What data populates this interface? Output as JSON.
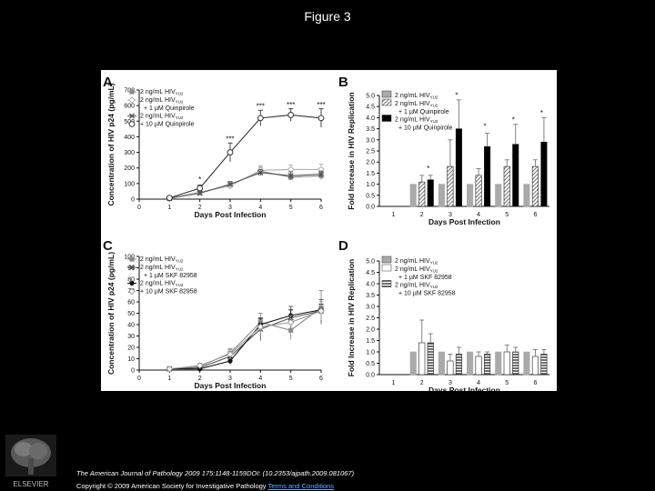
{
  "slide": {
    "title": "Figure 3",
    "citation": "The American Journal of Pathology 2009 175:1148-1159DOI: (10.2353/ajpath.2009.081067)",
    "copyright": "Copyright © 2009 American Society for Investigative Pathology",
    "terms_link": "Terms and Conditions",
    "publisher_logo": "ELSEVIER"
  },
  "chart_data": [
    {
      "panel": "A",
      "type": "line",
      "xlabel": "Days Post Infection",
      "ylabel": "Concentration of HIV p24 (pg/mL)",
      "xlim": [
        0,
        6
      ],
      "ylim": [
        0,
        700
      ],
      "xticks": [
        0,
        1,
        2,
        3,
        4,
        5,
        6
      ],
      "yticks": [
        0,
        100,
        200,
        300,
        400,
        500,
        600,
        700
      ],
      "x": [
        1,
        2,
        3,
        4,
        5,
        6
      ],
      "series": [
        {
          "legend": [
            "2 ng/mL HIV",
            "YU2"
          ],
          "marker": "square",
          "color": "#8a8a8a",
          "values": [
            5,
            40,
            90,
            180,
            140,
            150
          ],
          "errors": [
            3,
            10,
            15,
            25,
            20,
            25
          ]
        },
        {
          "legend": [
            "2 ng/mL HIV",
            "YU2",
            "+ 1 µM Quinpirole"
          ],
          "marker": "diamond",
          "color": "#b0b0b0",
          "values": [
            6,
            45,
            85,
            185,
            190,
            190
          ],
          "errors": [
            3,
            12,
            20,
            30,
            30,
            35
          ]
        },
        {
          "legend": [
            "2 ng/mL HIV",
            "YU2"
          ],
          "marker": "cross",
          "color": "#555555",
          "values": [
            5,
            38,
            95,
            170,
            150,
            160
          ],
          "errors": [
            3,
            10,
            18,
            20,
            25,
            20
          ]
        },
        {
          "legend": [
            "+ 10 µM Quinpirole"
          ],
          "marker": "circle-open",
          "color": "#333333",
          "values": [
            8,
            70,
            300,
            520,
            540,
            520
          ],
          "errors": [
            4,
            20,
            60,
            50,
            40,
            60
          ]
        }
      ],
      "annotations": [
        {
          "x": 2,
          "y": 110,
          "text": "*"
        },
        {
          "x": 3,
          "y": 370,
          "text": "***"
        },
        {
          "x": 4,
          "y": 580,
          "text": "***"
        },
        {
          "x": 5,
          "y": 590,
          "text": "***"
        },
        {
          "x": 6,
          "y": 590,
          "text": "***"
        }
      ]
    },
    {
      "panel": "B",
      "type": "bar",
      "xlabel": "Days Post Infection",
      "ylabel": "Fold Increase in HIV Replication",
      "ylim": [
        0,
        5
      ],
      "yticks": [
        "0.0",
        "0.5",
        "1.0",
        "1.5",
        "2.0",
        "2.5",
        "3.0",
        "3.5",
        "4.0",
        "4.5",
        "5.0"
      ],
      "categories": [
        "1",
        "2",
        "3",
        "4",
        "5",
        "6"
      ],
      "series": [
        {
          "legend": [
            "2 ng/mL HIV",
            "YU2"
          ],
          "fill": "grey",
          "values": [
            null,
            1.0,
            1.0,
            1.0,
            1.0,
            1.0
          ],
          "errors": [
            null,
            0,
            0,
            0,
            0,
            0
          ]
        },
        {
          "legend": [
            "2 ng/mL HIV",
            "YU2",
            "+ 1 µM Quinpirole"
          ],
          "fill": "hatch",
          "values": [
            null,
            1.1,
            1.8,
            1.4,
            1.8,
            1.8
          ],
          "errors": [
            null,
            0.3,
            1.2,
            0.3,
            0.3,
            0.3
          ]
        },
        {
          "legend": [
            "2 ng/mL HIV",
            "YU2",
            "+ 10 µM Quinpirole"
          ],
          "fill": "black",
          "values": [
            null,
            1.2,
            3.5,
            2.7,
            2.8,
            2.9
          ],
          "errors": [
            null,
            0.2,
            1.3,
            0.6,
            0.9,
            1.1
          ]
        }
      ],
      "annotations": [
        {
          "x": "2",
          "y": 1.6,
          "text": "*"
        },
        {
          "x": "3",
          "y": 4.9,
          "text": "*"
        },
        {
          "x": "4",
          "y": 3.5,
          "text": "*"
        },
        {
          "x": "5",
          "y": 3.8,
          "text": "*"
        },
        {
          "x": "5",
          "y": 2.1,
          "text": "*"
        },
        {
          "x": "6",
          "y": 4.1,
          "text": "*"
        }
      ]
    },
    {
      "panel": "C",
      "type": "line",
      "xlabel": "Days Post Infection",
      "ylabel": "Concentration of HIV p24 (pg/mL)",
      "xlim": [
        0,
        6
      ],
      "ylim": [
        0,
        100
      ],
      "xticks": [
        0,
        1,
        2,
        3,
        4,
        5,
        6
      ],
      "yticks": [
        0,
        10,
        20,
        30,
        40,
        50,
        60,
        70,
        80,
        90,
        100
      ],
      "x": [
        1,
        2,
        3,
        4,
        5,
        6
      ],
      "series": [
        {
          "legend": [
            "2 ng/mL HIV",
            "YU2"
          ],
          "marker": "square",
          "color": "#8a8a8a",
          "values": [
            1,
            3,
            15,
            42,
            35,
            55
          ],
          "errors": [
            0.5,
            2,
            4,
            8,
            8,
            15
          ]
        },
        {
          "legend": [
            "2 ng/mL HIV",
            "YU2",
            "+ 1 µM SKF 82958"
          ],
          "marker": "cross",
          "color": "#555555",
          "values": [
            1,
            2,
            12,
            36,
            46,
            52
          ],
          "errors": [
            0.5,
            2,
            3,
            10,
            10,
            10
          ]
        },
        {
          "legend": [
            "2 ng/mL HIV",
            "YU2"
          ],
          "marker": "circle",
          "color": "#111111",
          "values": [
            1,
            1,
            8,
            40,
            48,
            53
          ],
          "errors": [
            0.5,
            1,
            3,
            5,
            5,
            5
          ]
        },
        {
          "legend": [
            "+ 10 µM SKF 82958"
          ],
          "marker": "diamond",
          "color": "#999999",
          "values": [
            1,
            4,
            14,
            38,
            42,
            52
          ],
          "errors": [
            0.5,
            2,
            4,
            6,
            6,
            8
          ]
        }
      ]
    },
    {
      "panel": "D",
      "type": "bar",
      "xlabel": "Days Post Infection",
      "ylabel": "Fold Increase in HIV Replication",
      "ylim": [
        0,
        5
      ],
      "yticks": [
        "0.0",
        "0.5",
        "1.0",
        "1.5",
        "2.0",
        "2.5",
        "3.0",
        "3.5",
        "4.0",
        "4.5",
        "5.0"
      ],
      "categories": [
        "1",
        "2",
        "3",
        "4",
        "5",
        "6"
      ],
      "series": [
        {
          "legend": [
            "2 ng/mL HIV",
            "YU2"
          ],
          "fill": "grey",
          "values": [
            null,
            1.0,
            1.0,
            1.0,
            1.0,
            1.0
          ],
          "errors": [
            null,
            0,
            0,
            0,
            0,
            0
          ]
        },
        {
          "legend": [
            "2 ng/mL HIV",
            "YU2",
            "+ 1 µM SKF 82958"
          ],
          "fill": "white",
          "values": [
            null,
            1.4,
            0.6,
            0.8,
            1.0,
            0.8
          ],
          "errors": [
            null,
            1.0,
            0.3,
            0.2,
            0.3,
            0.3
          ]
        },
        {
          "legend": [
            "2 ng/mL HIV",
            "YU2",
            "+ 10 µM SKF 82958"
          ],
          "fill": "hstripe",
          "values": [
            null,
            1.4,
            0.9,
            0.9,
            1.0,
            0.9
          ],
          "errors": [
            null,
            0.4,
            0.3,
            0.1,
            0.2,
            0.2
          ]
        }
      ]
    }
  ]
}
